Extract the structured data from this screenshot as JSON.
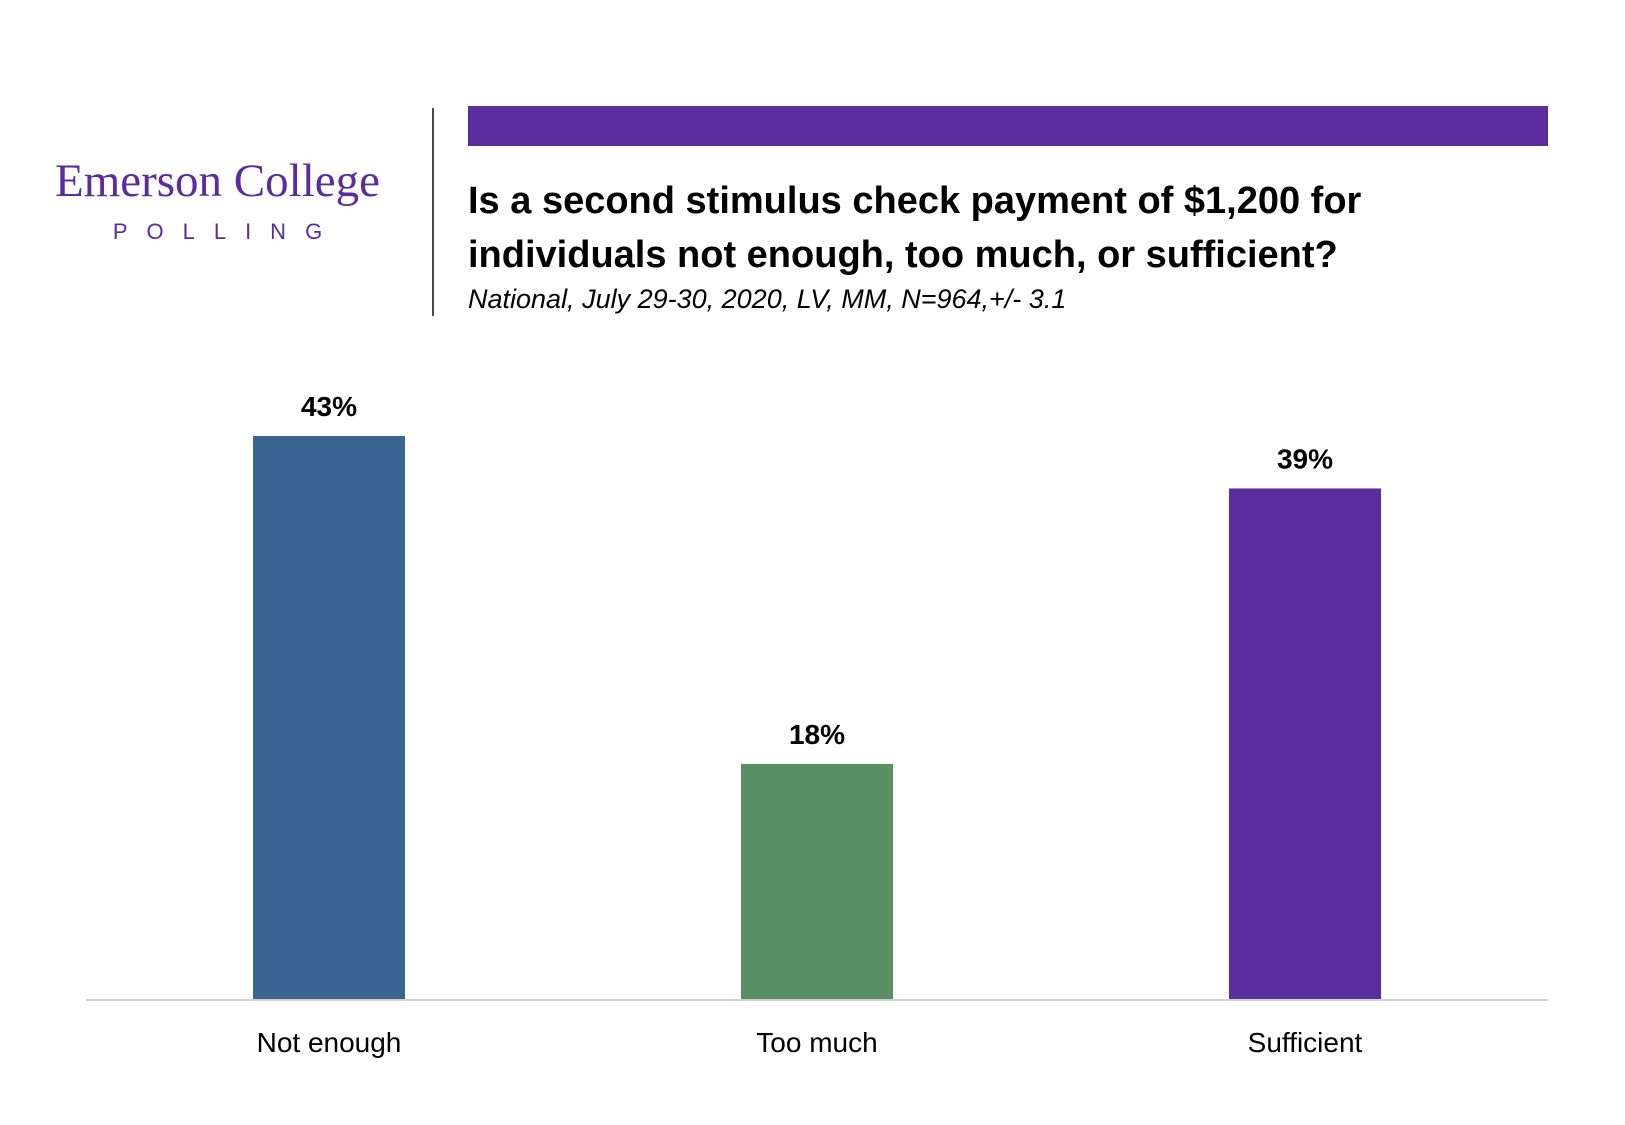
{
  "brand": {
    "name": "Emerson College",
    "sub": "POLLING",
    "accent": "#5b2c9e"
  },
  "header": {
    "title": "Is a second stimulus check payment of $1,200 for individuals not enough, too much, or sufficient?",
    "subtitle": "National, July 29-30, 2020, LV, MM,  N=964,+/-  3.1"
  },
  "chart_data": {
    "type": "bar",
    "title": "Is a second stimulus check payment of $1,200 for individuals not enough, too much, or sufficient?",
    "subtitle": "National, July 29-30, 2020, LV, MM,  N=964,+/-  3.1",
    "categories": [
      "Not enough",
      "Too much",
      "Sufficient"
    ],
    "values": [
      43,
      18,
      39
    ],
    "value_labels": [
      "43%",
      "18%",
      "39%"
    ],
    "colors": [
      "#3a6590",
      "#588f63",
      "#5b2c9e"
    ],
    "ylim": [
      0,
      43
    ],
    "grid": false,
    "legend": "none"
  }
}
